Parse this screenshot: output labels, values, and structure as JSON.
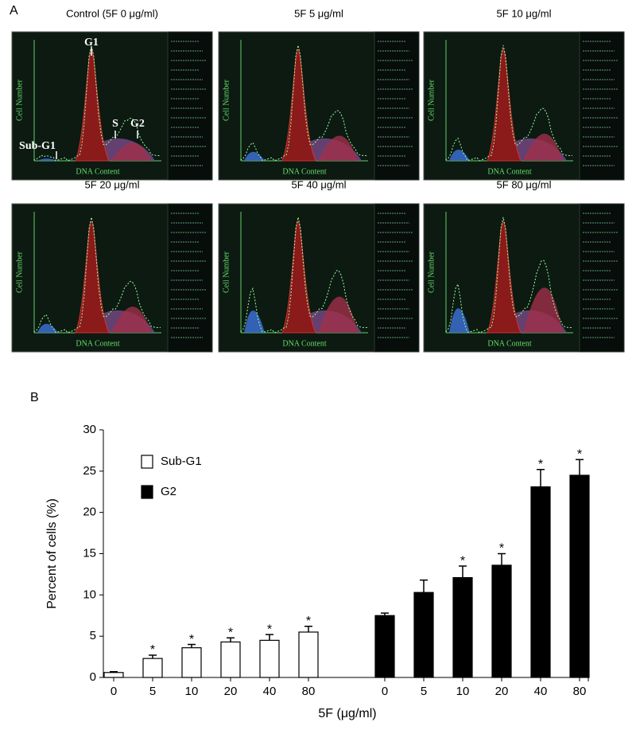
{
  "panel_a": {
    "label": "A",
    "plots": [
      {
        "title": "Control (5F 0 μg/ml)"
      },
      {
        "title": "5F 5 μg/ml"
      },
      {
        "title": "5F 10 μg/ml"
      },
      {
        "title": "5F 20 μg/ml"
      },
      {
        "title": "5F 40 μg/ml"
      },
      {
        "title": "5F 80 μg/ml"
      }
    ],
    "x_axis_label": "DNA Content",
    "y_axis_label": "Cell Number",
    "annotations": {
      "g1": "G1",
      "s": "S",
      "g2": "G2",
      "sub_g1": "Sub-G1"
    }
  },
  "chart_data": {
    "type": "bar",
    "label": "B",
    "ylabel": "Percent of cells (%)",
    "xlabel": "5F (μg/ml)",
    "categories": [
      "0",
      "5",
      "10",
      "20",
      "40",
      "80",
      "0",
      "5",
      "10",
      "20",
      "40",
      "80"
    ],
    "series": [
      {
        "name": "Sub-G1",
        "color": "#ffffff",
        "values": [
          0.6,
          2.3,
          3.6,
          4.3,
          4.5,
          5.5,
          null,
          null,
          null,
          null,
          null,
          null
        ],
        "errors": [
          0.1,
          0.4,
          0.4,
          0.5,
          0.7,
          0.7,
          null,
          null,
          null,
          null,
          null,
          null
        ],
        "markers": [
          null,
          "*",
          "*",
          "*",
          "*",
          "*",
          null,
          null,
          null,
          null,
          null,
          null
        ]
      },
      {
        "name": "G2",
        "color": "#000000",
        "values": [
          null,
          null,
          null,
          null,
          null,
          null,
          7.5,
          10.3,
          12.1,
          13.6,
          23.1,
          24.5
        ],
        "errors": [
          null,
          null,
          null,
          null,
          null,
          null,
          0.3,
          1.5,
          1.4,
          1.4,
          2.1,
          1.9
        ],
        "markers": [
          null,
          null,
          null,
          null,
          null,
          null,
          null,
          null,
          "*",
          "*",
          "*",
          "*"
        ]
      }
    ],
    "ylim": [
      0,
      30
    ],
    "yticks": [
      0,
      5,
      10,
      15,
      20,
      25,
      30
    ],
    "grid": false,
    "legend": "upper left"
  }
}
